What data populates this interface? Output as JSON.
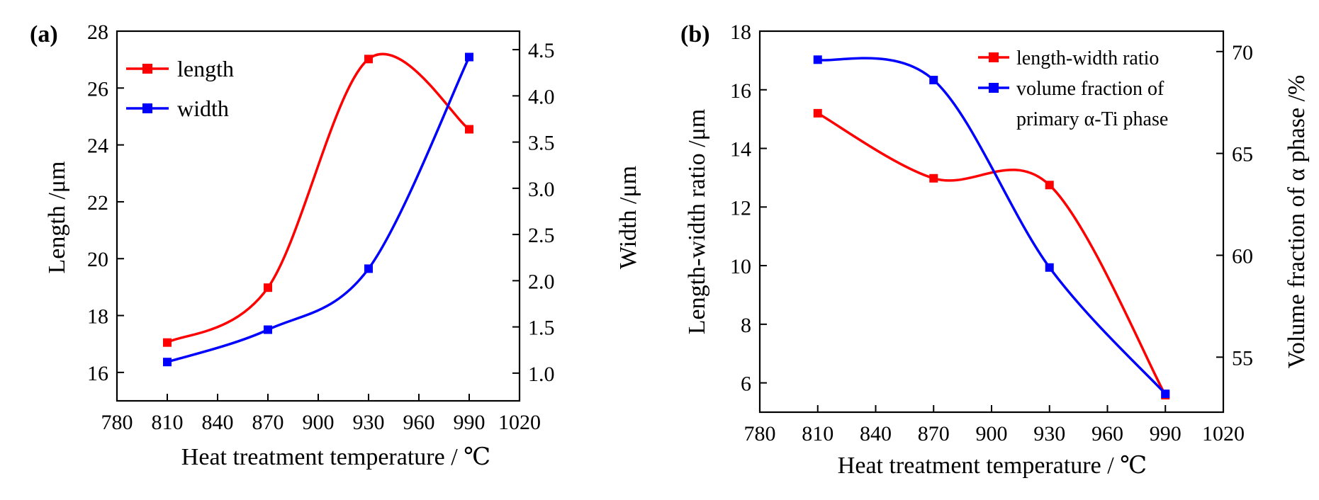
{
  "chart_data": [
    {
      "type": "line",
      "panel_label": "(a)",
      "xlabel": "Heat treatment temperature / ℃",
      "ylabel": "Length /μm",
      "y2label": "Width /μm",
      "x": [
        810,
        870,
        930,
        990
      ],
      "xlim": [
        780,
        1020
      ],
      "xticks": [
        780,
        810,
        840,
        870,
        900,
        930,
        960,
        990,
        1020
      ],
      "ylim": [
        15,
        28
      ],
      "yticks": [
        16,
        18,
        20,
        22,
        24,
        26,
        28
      ],
      "y2lim": [
        0.7,
        4.7
      ],
      "y2ticks": [
        "1.0",
        "1.5",
        "2.0",
        "2.5",
        "3.0",
        "3.5",
        "4.0",
        "4.5"
      ],
      "legend_position": "top-left",
      "series": [
        {
          "name": "length",
          "axis": "left",
          "color": "#ff0000",
          "values": [
            17.05,
            18.98,
            27.02,
            24.55
          ]
        },
        {
          "name": "width",
          "axis": "right",
          "color": "#0000ff",
          "values": [
            1.12,
            1.47,
            2.13,
            4.42
          ]
        }
      ]
    },
    {
      "type": "line",
      "panel_label": "(b)",
      "xlabel": "Heat treatment temperature / ℃",
      "ylabel": "Length-width ratio /μm",
      "y2label": "Volume fraction of  α phase /%",
      "x": [
        810,
        870,
        930,
        990
      ],
      "xlim": [
        780,
        1020
      ],
      "xticks": [
        780,
        810,
        840,
        870,
        900,
        930,
        960,
        990,
        1020
      ],
      "ylim": [
        5,
        18
      ],
      "yticks": [
        6,
        8,
        10,
        12,
        14,
        16,
        18
      ],
      "y2lim": [
        52.3,
        71
      ],
      "y2ticks": [
        55,
        60,
        65,
        70
      ],
      "legend_position": "top-right",
      "series": [
        {
          "name": "length-width ratio",
          "axis": "left",
          "color": "#ff0000",
          "values": [
            15.2,
            12.98,
            12.75,
            5.58
          ]
        },
        {
          "name_lines": [
            "volume fraction of",
            "primary α-Ti phase"
          ],
          "axis": "right",
          "color": "#0000ff",
          "values": [
            69.6,
            68.6,
            59.4,
            53.2
          ]
        }
      ]
    }
  ]
}
